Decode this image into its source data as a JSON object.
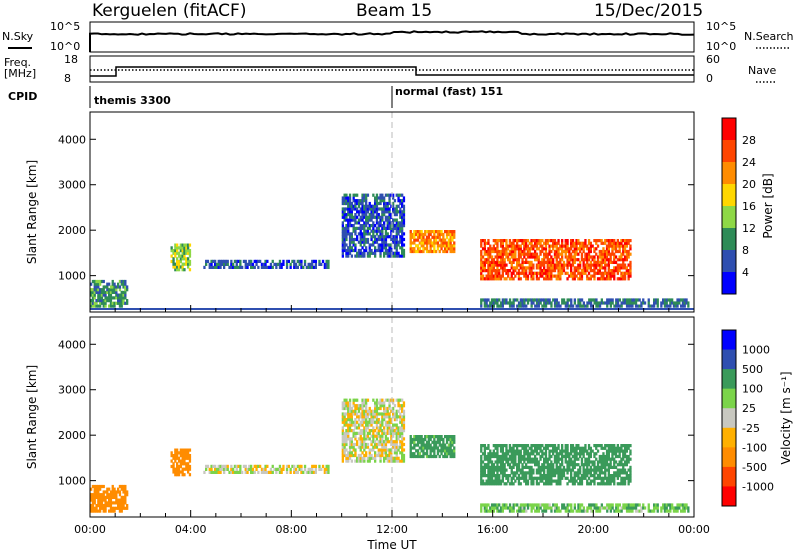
{
  "header": {
    "station": "Kerguelen (fitACF)",
    "beam": "Beam 15",
    "date": "15/Dec/2015"
  },
  "summary_panels": {
    "nsky": {
      "label": "N.Sky",
      "ticks": [
        "10^5",
        "10^0"
      ]
    },
    "nsearch": {
      "label": "N.Search",
      "ticks": [
        "10^5",
        "10^0"
      ]
    },
    "freq": {
      "label_line1": "Freq.",
      "label_line2": "[MHz]",
      "ticks": [
        "18",
        "8"
      ]
    },
    "nave": {
      "label": "Nave",
      "ticks": [
        "60",
        "0"
      ]
    },
    "cpid": {
      "label": "CPID",
      "segments": [
        {
          "start_hour": 0,
          "text": "themis 3300"
        },
        {
          "start_hour": 12,
          "text": "normal (fast) 151"
        }
      ]
    }
  },
  "colors": {
    "power": [
      "#0000ff",
      "#2f4fb0",
      "#2e8b57",
      "#8ed846",
      "#ffd700",
      "#ff8c00",
      "#ff4500",
      "#ff0000"
    ],
    "velocity": [
      "#ff0000",
      "#ff4500",
      "#ff8c00",
      "#ffb000",
      "#c8c8c0",
      "#7bd44a",
      "#3a9a5a",
      "#2f4fb0",
      "#0000ff"
    ]
  },
  "chart_data": [
    {
      "type": "heatmap",
      "name": "power",
      "xlabel": "",
      "ylabel": "Slant Range [km]",
      "x_ticks": [],
      "y_ticks": [
        "1000",
        "2000",
        "3000",
        "4000"
      ],
      "ylim": [
        200,
        4600
      ],
      "xlim": [
        0,
        24
      ],
      "colorbar": {
        "label": "Power [dB]",
        "ticks": [
          "28",
          "24",
          "20",
          "16",
          "12",
          "8",
          "4"
        ],
        "range": [
          0,
          32
        ]
      },
      "regions": [
        {
          "t0": 0.0,
          "t1": 1.5,
          "r0": 300,
          "r1": 900,
          "value": 10
        },
        {
          "t0": 3.2,
          "t1": 4.0,
          "r0": 1100,
          "r1": 1700,
          "value": 14
        },
        {
          "t0": 4.5,
          "t1": 9.5,
          "r0": 1150,
          "r1": 1350,
          "value": 6
        },
        {
          "t0": 10.0,
          "t1": 12.5,
          "r0": 1400,
          "r1": 2800,
          "value": 6
        },
        {
          "t0": 12.7,
          "t1": 14.5,
          "r0": 1500,
          "r1": 2000,
          "value": 22
        },
        {
          "t0": 15.5,
          "t1": 21.5,
          "r0": 900,
          "r1": 1800,
          "value": 26
        },
        {
          "t0": 15.5,
          "t1": 23.8,
          "r0": 300,
          "r1": 500,
          "value": 8
        }
      ]
    },
    {
      "type": "heatmap",
      "name": "velocity",
      "xlabel": "Time UT",
      "ylabel": "Slant Range [km]",
      "x_ticks": [
        "00:00",
        "04:00",
        "08:00",
        "12:00",
        "16:00",
        "20:00",
        "00:00"
      ],
      "y_ticks": [
        "1000",
        "2000",
        "3000",
        "4000"
      ],
      "ylim": [
        200,
        4600
      ],
      "xlim": [
        0,
        24
      ],
      "colorbar": {
        "label": "Velocity [m s⁻¹]",
        "ticks": [
          "1000",
          "500",
          "100",
          "25",
          "-25",
          "-100",
          "-500",
          "-1000"
        ],
        "range": [
          -1000,
          1000
        ]
      },
      "regions": [
        {
          "t0": 0.0,
          "t1": 1.5,
          "r0": 300,
          "r1": 900,
          "value": -400
        },
        {
          "t0": 3.2,
          "t1": 4.0,
          "r0": 1100,
          "r1": 1700,
          "value": -300
        },
        {
          "t0": 4.5,
          "t1": 9.5,
          "r0": 1150,
          "r1": 1350,
          "value": 0
        },
        {
          "t0": 10.0,
          "t1": 12.5,
          "r0": 1400,
          "r1": 2800,
          "value": 0
        },
        {
          "t0": 12.7,
          "t1": 14.5,
          "r0": 1500,
          "r1": 2000,
          "value": 150
        },
        {
          "t0": 15.5,
          "t1": 21.5,
          "r0": 900,
          "r1": 1800,
          "value": 200
        },
        {
          "t0": 15.5,
          "t1": 23.8,
          "r0": 300,
          "r1": 500,
          "value": 80
        }
      ]
    }
  ]
}
